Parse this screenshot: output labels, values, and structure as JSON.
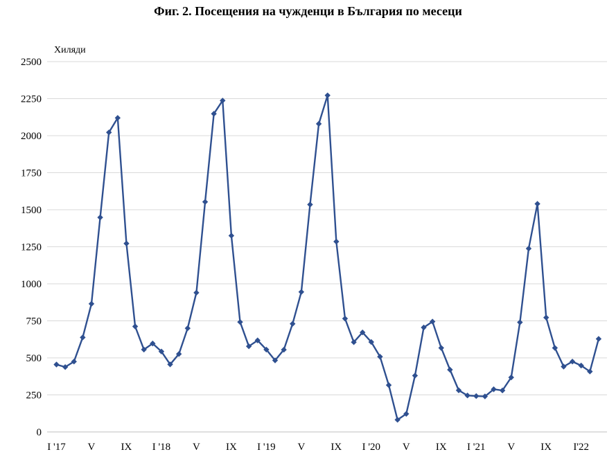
{
  "chart_data": {
    "type": "line",
    "title": "Фиг. 2. Посещения на чужденци в България по месеци",
    "ylabel": "Хиляди",
    "xlabel": "",
    "ylim": [
      0,
      2500
    ],
    "yticks": [
      0,
      250,
      500,
      750,
      1000,
      1250,
      1500,
      1750,
      2000,
      2250,
      2500
    ],
    "xtick_labels": [
      "I '17",
      "V",
      "IX",
      "I '18",
      "V",
      "IX",
      "I '19",
      "V",
      "IX",
      "I '20",
      "V",
      "IX",
      "I '21",
      "V",
      "IX",
      "I'22"
    ],
    "grid": true,
    "legend": "none",
    "line_color": "#2F5090",
    "series": [
      {
        "values": [
          455,
          438,
          475,
          638,
          865,
          1448,
          2022,
          2120,
          1272,
          712,
          556,
          597,
          543,
          456,
          526,
          700,
          940,
          1553,
          2148,
          2237,
          1325,
          742,
          578,
          618,
          556,
          483,
          555,
          730,
          945,
          1535,
          2080,
          2272,
          1285,
          765,
          606,
          672,
          607,
          508,
          316,
          82,
          122,
          380,
          705,
          745,
          567,
          420,
          281,
          246,
          242,
          240,
          288,
          280,
          368,
          740,
          1238,
          1540,
          772,
          567,
          441,
          475,
          448,
          408,
          628
        ]
      }
    ]
  }
}
